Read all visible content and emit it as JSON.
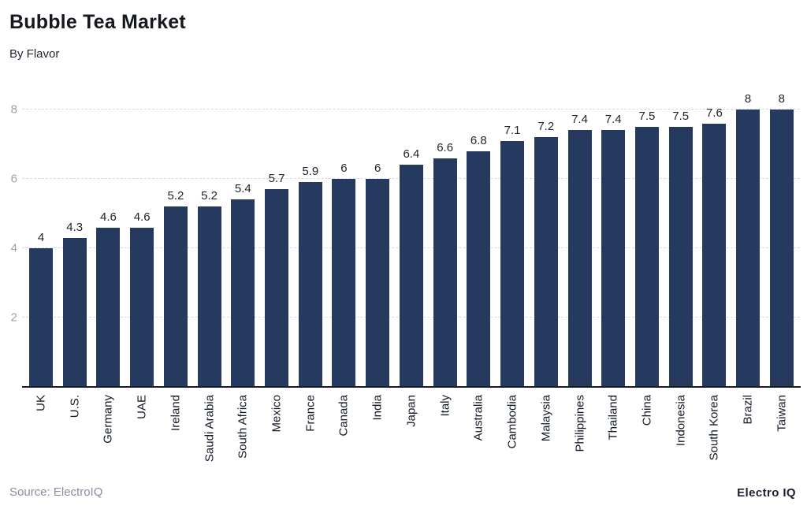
{
  "header": {
    "title": "Bubble Tea Market",
    "subtitle": "By Flavor"
  },
  "footer": {
    "source": "Source: ElectroIQ",
    "brand": "Electro IQ"
  },
  "colors": {
    "bar": "#253a5e",
    "grid": "#d8dbdf",
    "axis_line": "#161d2a",
    "tick_label": "#9aa0ab",
    "value_label": "#1d232d",
    "category_label": "#131a27",
    "title": "#15191f",
    "source_text": "#878e9e"
  },
  "chart_data": {
    "type": "bar",
    "title": "Bubble Tea Market",
    "subtitle": "By Flavor",
    "xlabel": "",
    "ylabel": "",
    "categories": [
      "UK",
      "U.S.",
      "Germany",
      "UAE",
      "Ireland",
      "Saudi Arabia",
      "South Africa",
      "Mexico",
      "France",
      "Canada",
      "India",
      "Japan",
      "Italy",
      "Australia",
      "Cambodia",
      "Malaysia",
      "Philippines",
      "Thailand",
      "China",
      "Indonesia",
      "South Korea",
      "Brazil",
      "Taiwan"
    ],
    "values": [
      4,
      4.3,
      4.6,
      4.6,
      5.2,
      5.2,
      5.4,
      5.7,
      5.9,
      6,
      6,
      6.4,
      6.6,
      6.8,
      7.1,
      7.2,
      7.4,
      7.4,
      7.5,
      7.5,
      7.6,
      8,
      8
    ],
    "yticks": [
      2,
      4,
      6,
      8
    ],
    "ylim": [
      0,
      8
    ],
    "grid": "horizontal-dashed",
    "legend": "none",
    "bar_labels": "above",
    "category_label_rotation": -90
  }
}
